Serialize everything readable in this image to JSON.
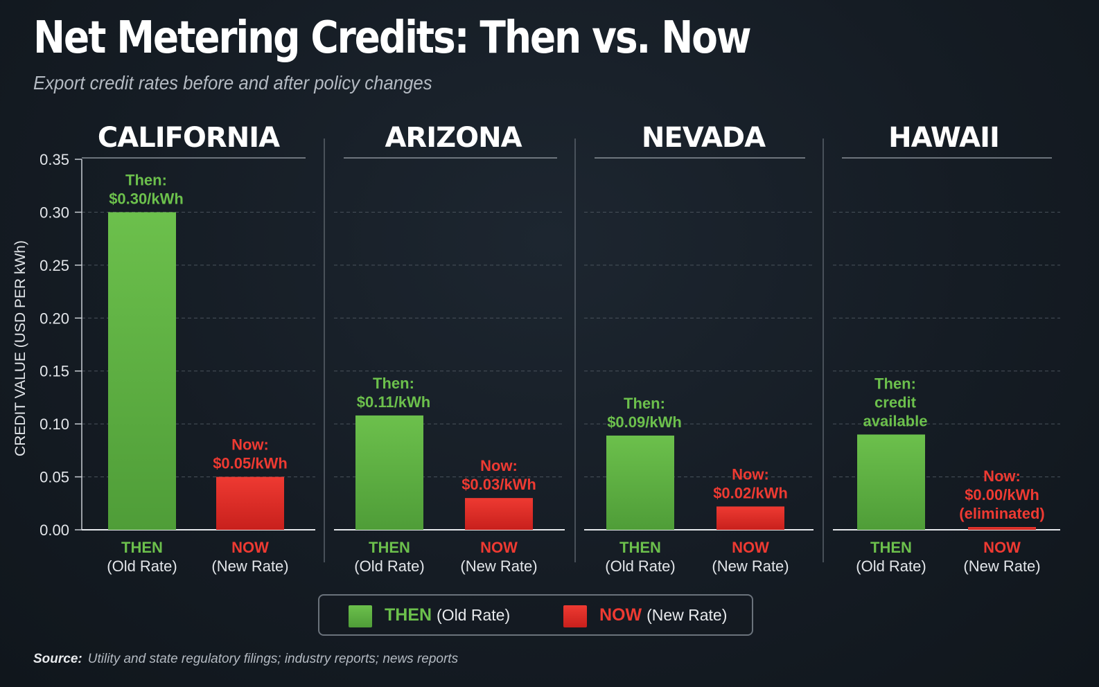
{
  "title": "Net Metering Credits: Then vs. Now",
  "subtitle": "Export credit rates before and after policy changes",
  "colors": {
    "then": "#6cc04c",
    "now": "#ee3a32",
    "background": "#151c24",
    "grid": "#4a535c"
  },
  "legend": {
    "then_label": "THEN",
    "then_sub": "(Old Rate)",
    "now_label": "NOW",
    "now_sub": "(New Rate)"
  },
  "source": {
    "label": "Source:",
    "text": "Utility and state regulatory filings; industry reports; news reports"
  },
  "chart_data": {
    "type": "bar",
    "ylabel": "CREDIT VALUE (USD PER kWh)",
    "ylim": [
      0,
      0.35
    ],
    "yticks": [
      "0.00",
      "0.05",
      "0.10",
      "0.15",
      "0.20",
      "0.25",
      "0.30",
      "0.35"
    ],
    "grid": true,
    "legend_position": "bottom-center",
    "bar_labels": [
      {
        "top": "THEN",
        "bottom": "(Old Rate)"
      },
      {
        "top": "NOW",
        "bottom": "(New Rate)"
      }
    ],
    "groups": [
      {
        "name": "CALIFORNIA",
        "then": 0.3,
        "now": 0.05,
        "then_label": [
          "Then:",
          "$0.30/kWh"
        ],
        "now_label": [
          "Now:",
          "$0.05/kWh"
        ]
      },
      {
        "name": "ARIZONA",
        "then": 0.108,
        "now": 0.03,
        "then_label": [
          "Then:",
          "$0.11/kWh"
        ],
        "now_label": [
          "Now:",
          "$0.03/kWh"
        ]
      },
      {
        "name": "NEVADA",
        "then": 0.089,
        "now": 0.022,
        "then_label": [
          "Then:",
          "$0.09/kWh"
        ],
        "now_label": [
          "Now:",
          "$0.02/kWh"
        ]
      },
      {
        "name": "HAWAII",
        "then": 0.09,
        "now": 0.0,
        "then_label": [
          "Then:",
          "credit",
          "available"
        ],
        "now_label": [
          "Now:",
          "$0.00/kWh",
          "(eliminated)"
        ]
      }
    ]
  }
}
